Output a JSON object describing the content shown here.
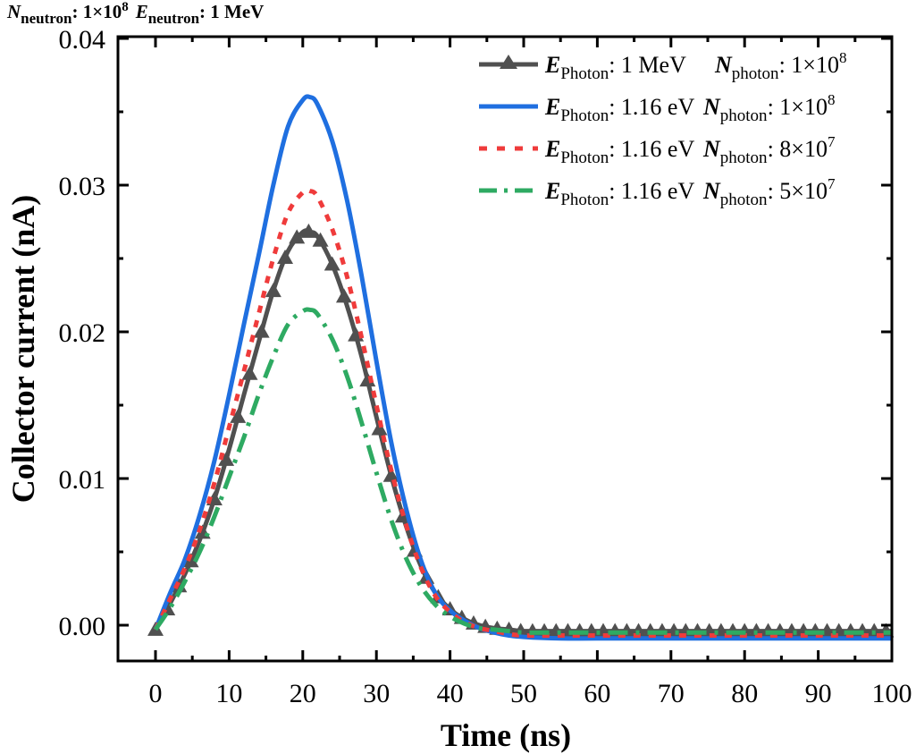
{
  "chart_data": {
    "type": "line",
    "title": "",
    "top_annotation": {
      "n_symbol": "N",
      "n_sub": "neutron",
      "n_value": ": 1×10",
      "n_exp": "8",
      "e_symbol": "E",
      "e_sub": "neutron",
      "e_value": ": 1 MeV"
    },
    "xlabel": "Time (ns)",
    "ylabel": "Collector current (nA)",
    "xlim": [
      -5,
      100
    ],
    "ylim": [
      -0.0025,
      0.04
    ],
    "xticks": [
      0,
      10,
      20,
      30,
      40,
      50,
      60,
      70,
      80,
      90,
      100
    ],
    "xtick_labels": [
      "0",
      "10",
      "20",
      "30",
      "40",
      "50",
      "60",
      "70",
      "80",
      "90",
      "100"
    ],
    "yticks": [
      0.0,
      0.01,
      0.02,
      0.03,
      0.04
    ],
    "ytick_labels": [
      "0.00",
      "0.01",
      "0.02",
      "0.03",
      "0.04"
    ],
    "grid": false,
    "legend_position": "top-right",
    "x": [
      0,
      2,
      4,
      6,
      8,
      10,
      12,
      14,
      16,
      18,
      20,
      21,
      22,
      24,
      26,
      28,
      30,
      32,
      34,
      36,
      38,
      40,
      42,
      44,
      46,
      48,
      50,
      55,
      60,
      70,
      80,
      90,
      100
    ],
    "series": [
      {
        "name": "E_Photon: 1 MeV  N_photon: 1×10^8",
        "legend": {
          "e_label": "E",
          "e_sub": "Photon",
          "e_value": ": 1 MeV",
          "n_label": "N",
          "n_sub": "photon",
          "n_value": ": 1×10",
          "n_exp": "8"
        },
        "color": "#505050",
        "style": "solid",
        "marker": "triangle",
        "values": [
          -0.0003,
          0.0015,
          0.0035,
          0.0058,
          0.0086,
          0.012,
          0.0157,
          0.0193,
          0.0228,
          0.0255,
          0.0268,
          0.0268,
          0.0265,
          0.0246,
          0.0218,
          0.0183,
          0.0142,
          0.0102,
          0.0068,
          0.0041,
          0.0022,
          0.0011,
          0.0004,
          0.0,
          -0.0002,
          -0.0003,
          -0.0004,
          -0.0004,
          -0.0004,
          -0.0004,
          -0.0004,
          -0.0004,
          -0.0004
        ]
      },
      {
        "name": "E_Photon: 1.16 eV  N_photon: 1×10^8",
        "legend": {
          "e_label": "E",
          "e_sub": "Photon",
          "e_value": ": 1.16 eV",
          "n_label": "N",
          "n_sub": "photon",
          "n_value": ": 1×10",
          "n_exp": "8"
        },
        "color": "#1f6fe0",
        "style": "solid",
        "marker": "none",
        "values": [
          -0.0003,
          0.0022,
          0.0045,
          0.0075,
          0.0112,
          0.0157,
          0.0205,
          0.0252,
          0.03,
          0.034,
          0.0358,
          0.036,
          0.0355,
          0.033,
          0.029,
          0.0238,
          0.018,
          0.0125,
          0.008,
          0.0045,
          0.0022,
          0.001,
          0.0003,
          -0.0002,
          -0.0005,
          -0.0007,
          -0.0008,
          -0.0009,
          -0.0009,
          -0.0009,
          -0.0009,
          -0.0009,
          -0.0009
        ]
      },
      {
        "name": "E_Photon: 1.16 eV  N_photon: 8×10^7",
        "legend": {
          "e_label": "E",
          "e_sub": "Photon",
          "e_value": ": 1.16 eV",
          "n_label": "N",
          "n_sub": "photon",
          "n_value": ": 8×10",
          "n_exp": "7"
        },
        "color": "#ef3b3b",
        "style": "dotted",
        "marker": "none",
        "values": [
          -0.0003,
          0.0018,
          0.0039,
          0.0065,
          0.0097,
          0.0135,
          0.0173,
          0.0212,
          0.025,
          0.0281,
          0.0295,
          0.0296,
          0.0292,
          0.027,
          0.0238,
          0.0196,
          0.015,
          0.0106,
          0.0069,
          0.004,
          0.002,
          0.0009,
          0.0002,
          -0.0002,
          -0.0004,
          -0.0006,
          -0.0007,
          -0.0007,
          -0.0007,
          -0.0007,
          -0.0007,
          -0.0007,
          -0.0007
        ]
      },
      {
        "name": "E_Photon: 1.16 eV  N_photon: 5×10^7",
        "legend": {
          "e_label": "E",
          "e_sub": "Photon",
          "e_value": ": 1.16 eV",
          "n_label": "N",
          "n_sub": "photon",
          "n_value": ": 5×10",
          "n_exp": "7"
        },
        "color": "#2eaa62",
        "style": "dashdot",
        "marker": "none",
        "values": [
          -0.0003,
          0.0012,
          0.003,
          0.005,
          0.0074,
          0.0101,
          0.0128,
          0.0157,
          0.0183,
          0.0205,
          0.0214,
          0.0215,
          0.0212,
          0.0195,
          0.017,
          0.0138,
          0.0104,
          0.0072,
          0.0046,
          0.0027,
          0.0014,
          0.0006,
          0.0001,
          -0.0002,
          -0.0003,
          -0.0004,
          -0.0005,
          -0.0005,
          -0.0005,
          -0.0005,
          -0.0005,
          -0.0005,
          -0.0005
        ]
      }
    ]
  }
}
